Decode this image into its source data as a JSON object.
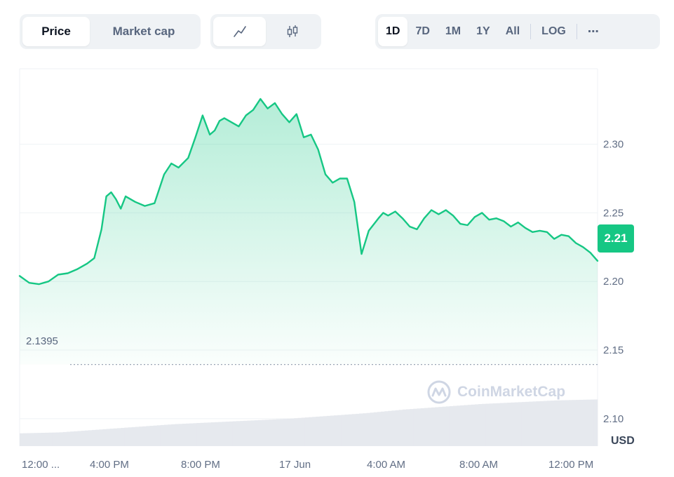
{
  "toolbar": {
    "metric_tabs": [
      "Price",
      "Market cap"
    ],
    "active_metric": "Price",
    "chart_type_icons": [
      "line-chart-icon",
      "candlestick-icon"
    ],
    "active_chart_type": "line-chart-icon",
    "ranges": [
      "1D",
      "7D",
      "1M",
      "1Y",
      "All"
    ],
    "active_range": "1D",
    "scale_toggle": "LOG",
    "more_label": "⋯"
  },
  "watermark": "CoinMarketCap",
  "current_price_badge": "2.21",
  "reference_line_label": "2.1395",
  "currency_label": "USD",
  "colors": {
    "line": "#16c784",
    "badge": "#16c784",
    "volume": "#e6e9ee"
  },
  "chart_data": {
    "type": "area",
    "xlabel": "",
    "ylabel": "",
    "x_tick_labels": [
      "12:00 ...",
      "4:00 PM",
      "8:00 PM",
      "17 Jun",
      "4:00 AM",
      "8:00 AM",
      "12:00 PM"
    ],
    "y_tick_labels": [
      "2.30",
      "2.25",
      "2.20",
      "2.15",
      "2.10"
    ],
    "ylim": [
      2.08,
      2.355
    ],
    "grid": true,
    "reference_line": 2.1395,
    "current_price": 2.21,
    "series": [
      {
        "hours": [
          0,
          0.4,
          0.8,
          1.2,
          1.6,
          2.0,
          2.4,
          2.8,
          3.1,
          3.4,
          3.6,
          3.8,
          4.0,
          4.2,
          4.4,
          4.8,
          5.2,
          5.6,
          6.0,
          6.3,
          6.6,
          7.0,
          7.3,
          7.6,
          7.9,
          8.1,
          8.3,
          8.5,
          8.8,
          9.1,
          9.4,
          9.7,
          10.0,
          10.3,
          10.6,
          10.9,
          11.2,
          11.5,
          11.8,
          12.1,
          12.4,
          12.7,
          13.0,
          13.3,
          13.6,
          13.9,
          14.2,
          14.5,
          14.9,
          15.1,
          15.3,
          15.6,
          15.9,
          16.2,
          16.5,
          16.8,
          17.1,
          17.4,
          17.7,
          18.0,
          18.3,
          18.6,
          18.9,
          19.2,
          19.5,
          19.8,
          20.1,
          20.4,
          20.7,
          21.0,
          21.3,
          21.6,
          21.9,
          22.2,
          22.5,
          22.8,
          23.1,
          23.4,
          23.7,
          24.0
        ],
        "price": [
          2.204,
          2.199,
          2.198,
          2.2,
          2.205,
          2.206,
          2.209,
          2.213,
          2.217,
          2.238,
          2.262,
          2.265,
          2.26,
          2.253,
          2.262,
          2.258,
          2.255,
          2.257,
          2.278,
          2.286,
          2.283,
          2.29,
          2.305,
          2.321,
          2.307,
          2.31,
          2.317,
          2.319,
          2.316,
          2.313,
          2.321,
          2.325,
          2.333,
          2.326,
          2.33,
          2.322,
          2.316,
          2.322,
          2.305,
          2.307,
          2.296,
          2.278,
          2.272,
          2.275,
          2.275,
          2.258,
          2.22,
          2.237,
          2.246,
          2.25,
          2.248,
          2.251,
          2.246,
          2.24,
          2.238,
          2.246,
          2.252,
          2.249,
          2.252,
          2.248,
          2.242,
          2.241,
          2.247,
          2.25,
          2.245,
          2.246,
          2.244,
          2.24,
          2.243,
          2.239,
          2.236,
          2.237,
          2.236,
          2.231,
          2.234,
          2.233,
          2.228,
          2.225,
          2.221,
          2.215
        ]
      }
    ],
    "volume_profile": [
      0.14,
      0.15,
      0.18,
      0.21,
      0.24,
      0.26,
      0.28,
      0.3,
      0.33,
      0.36,
      0.4,
      0.43,
      0.46,
      0.48,
      0.5,
      0.51
    ]
  }
}
